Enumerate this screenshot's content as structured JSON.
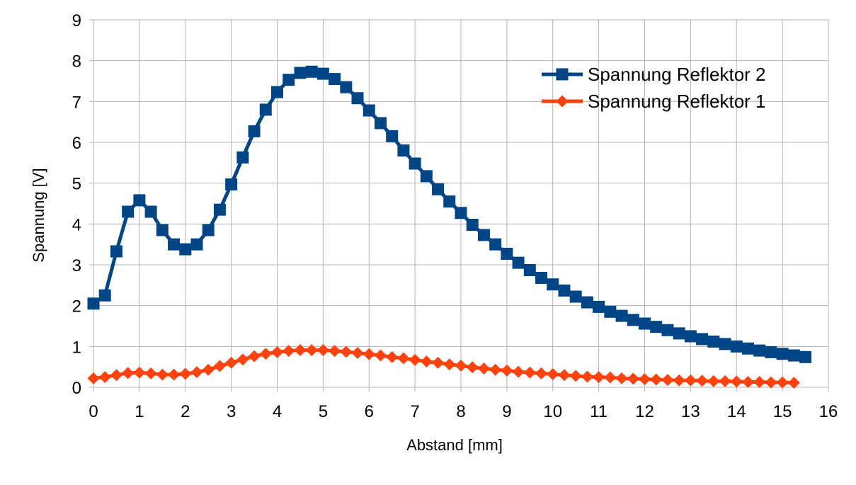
{
  "chart_data": {
    "type": "line",
    "title": "",
    "xlabel": "Abstand [mm]",
    "ylabel": "Spannung [V]",
    "xlim": [
      0,
      16
    ],
    "ylim": [
      0,
      9
    ],
    "x_ticks": [
      0,
      1,
      2,
      3,
      4,
      5,
      6,
      7,
      8,
      9,
      10,
      11,
      12,
      13,
      14,
      15,
      16
    ],
    "y_ticks": [
      0,
      1,
      2,
      3,
      4,
      5,
      6,
      7,
      8,
      9
    ],
    "grid": true,
    "legend_position": "top-right",
    "series": [
      {
        "name": "Spannung Reflektor 2",
        "color": "#004586",
        "marker": "square",
        "points": [
          [
            0,
            2.05
          ],
          [
            0.25,
            2.25
          ],
          [
            0.5,
            3.33
          ],
          [
            0.75,
            4.3
          ],
          [
            1,
            4.58
          ],
          [
            1.25,
            4.3
          ],
          [
            1.5,
            3.85
          ],
          [
            1.75,
            3.5
          ],
          [
            2,
            3.38
          ],
          [
            2.25,
            3.5
          ],
          [
            2.5,
            3.85
          ],
          [
            2.75,
            4.35
          ],
          [
            3,
            4.97
          ],
          [
            3.25,
            5.63
          ],
          [
            3.5,
            6.27
          ],
          [
            3.75,
            6.8
          ],
          [
            4,
            7.23
          ],
          [
            4.25,
            7.53
          ],
          [
            4.5,
            7.7
          ],
          [
            4.75,
            7.73
          ],
          [
            5,
            7.68
          ],
          [
            5.25,
            7.55
          ],
          [
            5.5,
            7.35
          ],
          [
            5.75,
            7.08
          ],
          [
            6,
            6.78
          ],
          [
            6.25,
            6.47
          ],
          [
            6.5,
            6.15
          ],
          [
            6.75,
            5.8
          ],
          [
            7,
            5.48
          ],
          [
            7.25,
            5.17
          ],
          [
            7.5,
            4.85
          ],
          [
            7.75,
            4.55
          ],
          [
            8,
            4.27
          ],
          [
            8.25,
            3.98
          ],
          [
            8.5,
            3.73
          ],
          [
            8.75,
            3.5
          ],
          [
            9,
            3.27
          ],
          [
            9.25,
            3.05
          ],
          [
            9.5,
            2.87
          ],
          [
            9.75,
            2.68
          ],
          [
            10,
            2.52
          ],
          [
            10.25,
            2.37
          ],
          [
            10.5,
            2.22
          ],
          [
            10.75,
            2.08
          ],
          [
            11,
            1.97
          ],
          [
            11.25,
            1.85
          ],
          [
            11.5,
            1.75
          ],
          [
            11.75,
            1.65
          ],
          [
            12,
            1.56
          ],
          [
            12.25,
            1.48
          ],
          [
            12.5,
            1.4
          ],
          [
            12.75,
            1.32
          ],
          [
            13,
            1.25
          ],
          [
            13.25,
            1.18
          ],
          [
            13.5,
            1.12
          ],
          [
            13.75,
            1.06
          ],
          [
            14,
            1.0
          ],
          [
            14.25,
            0.95
          ],
          [
            14.5,
            0.9
          ],
          [
            14.75,
            0.86
          ],
          [
            15,
            0.82
          ],
          [
            15.25,
            0.78
          ],
          [
            15.5,
            0.74
          ]
        ]
      },
      {
        "name": "Spannung Reflektor 1",
        "color": "#ff420e",
        "marker": "diamond",
        "points": [
          [
            0,
            0.22
          ],
          [
            0.25,
            0.25
          ],
          [
            0.5,
            0.3
          ],
          [
            0.75,
            0.35
          ],
          [
            1,
            0.36
          ],
          [
            1.25,
            0.34
          ],
          [
            1.5,
            0.31
          ],
          [
            1.75,
            0.31
          ],
          [
            2,
            0.33
          ],
          [
            2.25,
            0.37
          ],
          [
            2.5,
            0.43
          ],
          [
            2.75,
            0.52
          ],
          [
            3,
            0.6
          ],
          [
            3.25,
            0.68
          ],
          [
            3.5,
            0.76
          ],
          [
            3.75,
            0.82
          ],
          [
            4,
            0.86
          ],
          [
            4.25,
            0.89
          ],
          [
            4.5,
            0.91
          ],
          [
            4.75,
            0.91
          ],
          [
            5,
            0.91
          ],
          [
            5.25,
            0.89
          ],
          [
            5.5,
            0.87
          ],
          [
            5.75,
            0.84
          ],
          [
            6,
            0.81
          ],
          [
            6.25,
            0.78
          ],
          [
            6.5,
            0.74
          ],
          [
            6.75,
            0.71
          ],
          [
            7,
            0.67
          ],
          [
            7.25,
            0.63
          ],
          [
            7.5,
            0.6
          ],
          [
            7.75,
            0.56
          ],
          [
            8,
            0.53
          ],
          [
            8.25,
            0.49
          ],
          [
            8.5,
            0.46
          ],
          [
            8.75,
            0.43
          ],
          [
            9,
            0.41
          ],
          [
            9.25,
            0.38
          ],
          [
            9.5,
            0.36
          ],
          [
            9.75,
            0.34
          ],
          [
            10,
            0.32
          ],
          [
            10.25,
            0.3
          ],
          [
            10.5,
            0.28
          ],
          [
            10.75,
            0.26
          ],
          [
            11,
            0.25
          ],
          [
            11.25,
            0.24
          ],
          [
            11.5,
            0.22
          ],
          [
            11.75,
            0.21
          ],
          [
            12,
            0.2
          ],
          [
            12.25,
            0.19
          ],
          [
            12.5,
            0.18
          ],
          [
            12.75,
            0.17
          ],
          [
            13,
            0.17
          ],
          [
            13.25,
            0.16
          ],
          [
            13.5,
            0.15
          ],
          [
            13.75,
            0.15
          ],
          [
            14,
            0.14
          ],
          [
            14.25,
            0.13
          ],
          [
            14.5,
            0.13
          ],
          [
            14.75,
            0.12
          ],
          [
            15,
            0.12
          ],
          [
            15.25,
            0.11
          ]
        ]
      }
    ]
  }
}
